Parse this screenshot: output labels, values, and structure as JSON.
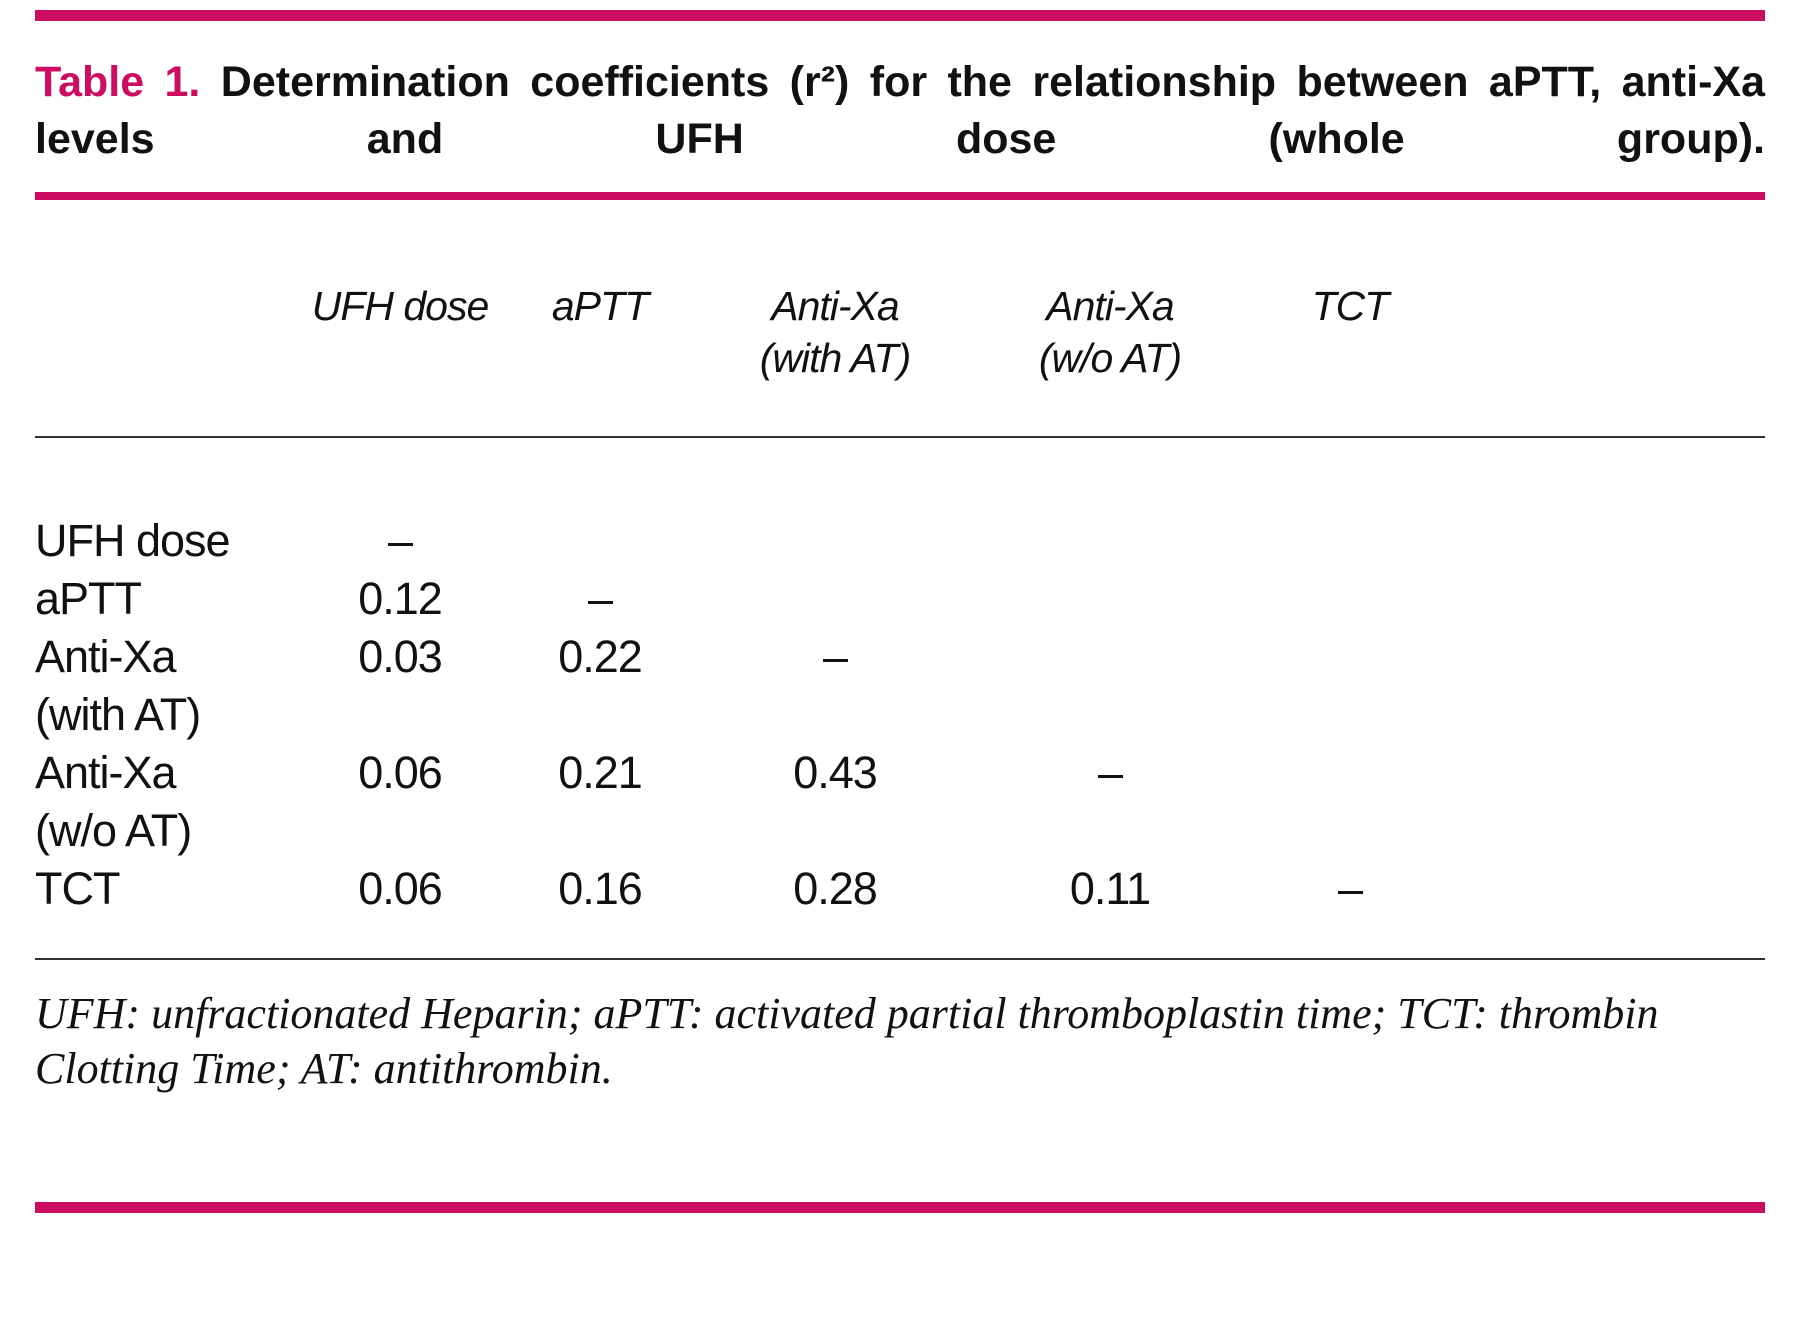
{
  "colors": {
    "accent": "#cb0c60"
  },
  "title": {
    "label": "Table 1.",
    "text": "Determination coefficients (r²) for the relationship between aPTT, anti-Xa levels and UFH dose (whole group)."
  },
  "chart_data": {
    "type": "table",
    "title": "Determination coefficients (r²) for the relationship between aPTT, anti-Xa levels and UFH dose (whole group)",
    "columns": [
      "",
      "UFH dose",
      "aPTT",
      "Anti-Xa (with AT)",
      "Anti-Xa (w/o AT)",
      "TCT"
    ],
    "rows": [
      [
        "UFH dose",
        "–",
        "",
        "",
        "",
        ""
      ],
      [
        "aPTT",
        "0.12",
        "–",
        "",
        "",
        ""
      ],
      [
        "Anti-Xa (with AT)",
        "0.03",
        "0.22",
        "–",
        "",
        ""
      ],
      [
        "Anti-Xa (w/o AT)",
        "0.06",
        "0.21",
        "0.43",
        "–",
        ""
      ],
      [
        "TCT",
        "0.06",
        "0.16",
        "0.28",
        "0.11",
        "–"
      ]
    ]
  },
  "table": {
    "columns": [
      {
        "line1": "UFH dose",
        "line2": ""
      },
      {
        "line1": "aPTT",
        "line2": ""
      },
      {
        "line1": "Anti-Xa",
        "line2": "(with AT)"
      },
      {
        "line1": "Anti-Xa",
        "line2": "(w/o AT)"
      },
      {
        "line1": "TCT",
        "line2": ""
      }
    ],
    "rows": [
      {
        "label1": "UFH dose",
        "label2": "",
        "values": [
          "–",
          "",
          "",
          "",
          ""
        ]
      },
      {
        "label1": "aPTT",
        "label2": "",
        "values": [
          "0.12",
          "–",
          "",
          "",
          ""
        ]
      },
      {
        "label1": "Anti-Xa",
        "label2": "(with AT)",
        "values": [
          "0.03",
          "0.22",
          "–",
          "",
          ""
        ]
      },
      {
        "label1": "Anti-Xa",
        "label2": "(w/o AT)",
        "values": [
          "0.06",
          "0.21",
          "0.43",
          "–",
          ""
        ]
      },
      {
        "label1": "TCT",
        "label2": "",
        "values": [
          "0.06",
          "0.16",
          "0.28",
          "0.11",
          "–"
        ]
      }
    ]
  },
  "footnote": "UFH: unfractionated Heparin; aPTT: activated partial thromboplastin time; TCT: thrombin Clotting Time; AT: antithrombin."
}
